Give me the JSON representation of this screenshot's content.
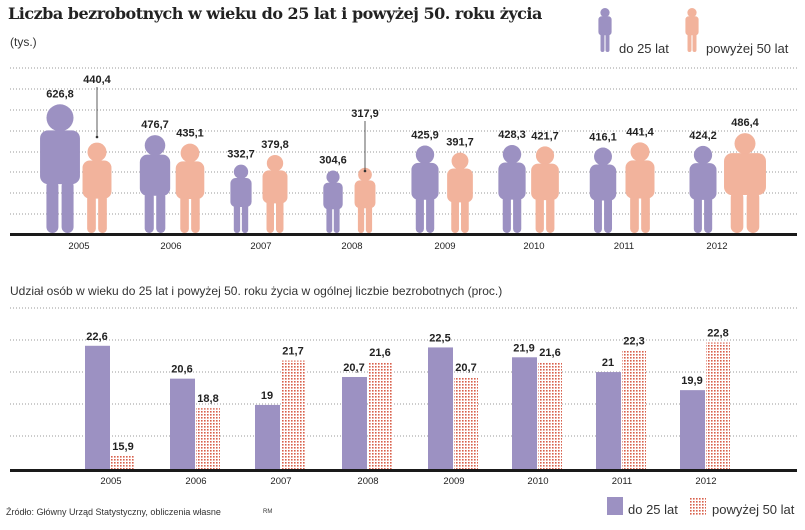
{
  "colors": {
    "young": "#9c91c2",
    "old": "#f2b39c",
    "dots": "#d8614c",
    "axis": "#1a1a1a",
    "grid": "#777777"
  },
  "chart_data": [
    {
      "type": "bar",
      "style": "pictogram",
      "title": "Liczba bezrobotnych w wieku do 25 lat i powyżej 50. roku życia",
      "ylabel": "(tys.)",
      "categories": [
        "2005",
        "2006",
        "2007",
        "2008",
        "2009",
        "2010",
        "2011",
        "2012"
      ],
      "series": [
        {
          "name": "do 25 lat",
          "values": [
            626.8,
            476.7,
            332.7,
            304.6,
            425.9,
            428.3,
            416.1,
            424.2
          ],
          "labels": [
            "626,8",
            "476,7",
            "332,7",
            "304,6",
            "425,9",
            "428,3",
            "416,1",
            "424,2"
          ]
        },
        {
          "name": "powyżej 50 lat",
          "values": [
            440.4,
            435.1,
            379.8,
            317.9,
            391.7,
            421.7,
            441.4,
            486.4
          ],
          "labels": [
            "440,4",
            "435,1",
            "379,8",
            "317,9",
            "391,7",
            "421,7",
            "441,4",
            "486,4"
          ]
        }
      ],
      "ylim": [
        0,
        800
      ],
      "grid": true,
      "legend": "top-right"
    },
    {
      "type": "bar",
      "title": "Udział osób w wieku do 25 lat i powyżej 50. roku życia w ogólnej liczbie bezrobotnych (proc.)",
      "categories": [
        "2005",
        "2006",
        "2007",
        "2008",
        "2009",
        "2010",
        "2011",
        "2012"
      ],
      "series": [
        {
          "name": "do 25 lat",
          "values": [
            22.6,
            20.6,
            19,
            20.7,
            22.5,
            21.9,
            21,
            19.9
          ],
          "labels": [
            "22,6",
            "20,6",
            "19",
            "20,7",
            "22,5",
            "21,9",
            "21",
            "19,9"
          ]
        },
        {
          "name": "powyżej 50 lat",
          "values": [
            15.9,
            18.8,
            21.7,
            21.6,
            20.7,
            21.6,
            22.3,
            22.8
          ],
          "labels": [
            "15,9",
            "18,8",
            "21,7",
            "21,6",
            "20,7",
            "21,6",
            "22,3",
            "22,8"
          ]
        }
      ],
      "ylim": [
        15.1,
        24.9
      ],
      "grid": true,
      "legend": "bottom-right"
    }
  ],
  "source": "Źródło: Główny Urząd Statystyczny, obliczenia własne",
  "initials": "RM"
}
